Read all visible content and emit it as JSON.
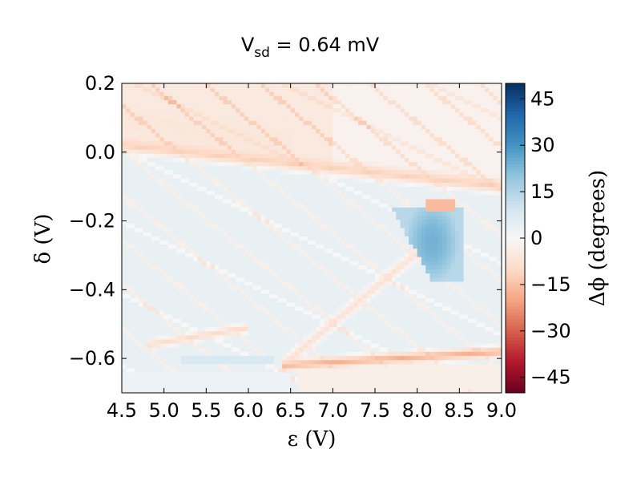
{
  "chart_data": {
    "type": "heatmap",
    "title_main": "V",
    "title_sub": "sd",
    "title_rest": " = 0.64 mV",
    "xlabel": "ε (V)",
    "ylabel": "δ (V)",
    "xlim": [
      4.5,
      9.0
    ],
    "ylim": [
      -0.7,
      0.2
    ],
    "x_ticks": [
      4.5,
      5.0,
      5.5,
      6.0,
      6.5,
      7.0,
      7.5,
      8.0,
      8.5,
      9.0
    ],
    "x_tick_labels": [
      "4.5",
      "5.0",
      "5.5",
      "6.0",
      "6.5",
      "7.0",
      "7.5",
      "8.0",
      "8.5",
      "9.0"
    ],
    "y_ticks": [
      0.2,
      0.0,
      -0.2,
      -0.4,
      -0.6
    ],
    "y_tick_labels": [
      "0.2",
      "0.0",
      "−0.2",
      "−0.4",
      "−0.6"
    ],
    "colorbar": {
      "label": "Δϕ (degrees)",
      "range": [
        -50,
        50
      ],
      "ticks": [
        45,
        30,
        15,
        0,
        -15,
        -30,
        -45
      ],
      "tick_labels": [
        "45",
        "30",
        "15",
        "0",
        "−15",
        "−30",
        "−45"
      ],
      "colormap": "RdBu"
    },
    "features": [
      {
        "kind": "band",
        "from": [
          4.5,
          0.02
        ],
        "to": [
          9.0,
          -0.1
        ],
        "value": -12,
        "width": 0.03
      },
      {
        "kind": "band",
        "from": [
          4.5,
          0.1
        ],
        "to": [
          6.5,
          0.02
        ],
        "value": -6,
        "width": 0.05
      },
      {
        "kind": "band",
        "from": [
          6.4,
          -0.62
        ],
        "to": [
          9.0,
          -0.58
        ],
        "value": -18,
        "width": 0.025
      },
      {
        "kind": "band",
        "from": [
          6.4,
          -0.62
        ],
        "to": [
          8.3,
          -0.23
        ],
        "value": -8,
        "width": 0.03
      },
      {
        "kind": "band",
        "from": [
          4.8,
          -0.56
        ],
        "to": [
          6.0,
          -0.51
        ],
        "value": -10,
        "width": 0.02
      },
      {
        "kind": "band",
        "from": [
          5.2,
          -0.6
        ],
        "to": [
          6.3,
          -0.6
        ],
        "value": 8,
        "width": 0.012
      },
      {
        "kind": "blob",
        "center": [
          8.15,
          -0.27
        ],
        "value": 18
      },
      {
        "kind": "blob_edge",
        "center": [
          8.3,
          -0.15
        ],
        "value": -15
      }
    ]
  }
}
